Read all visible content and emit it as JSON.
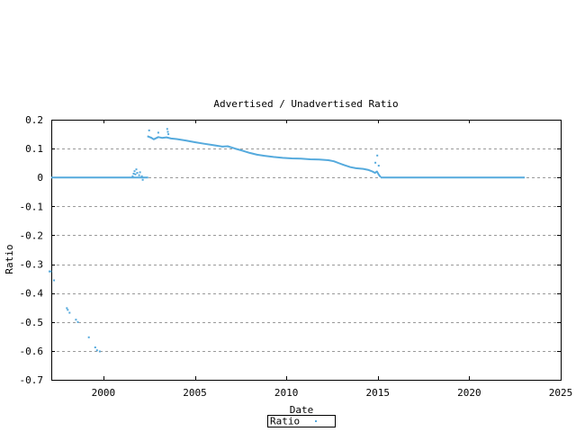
{
  "chart_data": {
    "type": "line",
    "title": "Advertised / Unadvertised Ratio",
    "xlabel": "Date",
    "ylabel": "Ratio",
    "xlim": [
      1997.15,
      2025
    ],
    "ylim": [
      -0.7,
      0.2
    ],
    "xticks": [
      "2000",
      "2005",
      "2010",
      "2015",
      "2020",
      "2025"
    ],
    "xtick_values": [
      2000,
      2005,
      2010,
      2015,
      2020,
      2025
    ],
    "yticks": [
      "0.2",
      "0.1",
      "0",
      "-0.1",
      "-0.2",
      "-0.3",
      "-0.4",
      "-0.5",
      "-0.6",
      "-0.7"
    ],
    "ytick_values": [
      0.2,
      0.1,
      0,
      -0.1,
      -0.2,
      -0.3,
      -0.4,
      -0.5,
      -0.6,
      -0.7
    ],
    "grid": "horizontal-dashed",
    "legend": {
      "label": "Ratio",
      "position": "bottom-outside-center"
    },
    "line_color": "#55aadd",
    "grid_color": "#9a9a9a",
    "series": [
      {
        "name": "zero-baseline-early",
        "mode": "line",
        "points": [
          [
            1997.15,
            0
          ],
          [
            2002.45,
            0
          ]
        ]
      },
      {
        "name": "main-ratio-curve",
        "mode": "line",
        "points": [
          [
            2002.4,
            0.143
          ],
          [
            2002.6,
            0.138
          ],
          [
            2002.75,
            0.132
          ],
          [
            2003.0,
            0.14
          ],
          [
            2003.2,
            0.137
          ],
          [
            2003.45,
            0.139
          ],
          [
            2003.7,
            0.135
          ],
          [
            2004.0,
            0.133
          ],
          [
            2004.5,
            0.128
          ],
          [
            2005.0,
            0.122
          ],
          [
            2005.5,
            0.117
          ],
          [
            2006.0,
            0.112
          ],
          [
            2006.5,
            0.107
          ],
          [
            2006.8,
            0.108
          ],
          [
            2007.2,
            0.1
          ],
          [
            2007.6,
            0.093
          ],
          [
            2008.0,
            0.085
          ],
          [
            2008.4,
            0.079
          ],
          [
            2008.8,
            0.075
          ],
          [
            2009.3,
            0.071
          ],
          [
            2009.8,
            0.068
          ],
          [
            2010.3,
            0.066
          ],
          [
            2010.8,
            0.065
          ],
          [
            2011.3,
            0.063
          ],
          [
            2011.8,
            0.062
          ],
          [
            2012.3,
            0.06
          ],
          [
            2012.6,
            0.056
          ],
          [
            2012.9,
            0.049
          ],
          [
            2013.2,
            0.042
          ],
          [
            2013.5,
            0.036
          ],
          [
            2013.8,
            0.032
          ],
          [
            2014.2,
            0.03
          ],
          [
            2014.5,
            0.026
          ],
          [
            2014.7,
            0.021
          ],
          [
            2014.85,
            0.016
          ],
          [
            2014.95,
            0.021
          ],
          [
            2015.05,
            0.01
          ],
          [
            2015.16,
            0.001
          ]
        ]
      },
      {
        "name": "zero-baseline-late",
        "mode": "line",
        "points": [
          [
            2015.16,
            0
          ],
          [
            2023.03,
            0
          ]
        ]
      },
      {
        "name": "scatter-negative-early",
        "mode": "dots",
        "points": [
          [
            1997.05,
            -0.325
          ],
          [
            1997.12,
            -0.325
          ],
          [
            1997.3,
            -0.356
          ],
          [
            1998.0,
            -0.452
          ],
          [
            1998.05,
            -0.458
          ],
          [
            1998.15,
            -0.468
          ],
          [
            1998.5,
            -0.492
          ],
          [
            1998.6,
            -0.5
          ],
          [
            1999.2,
            -0.553
          ],
          [
            1999.55,
            -0.588
          ],
          [
            1999.65,
            -0.598
          ],
          [
            1999.8,
            -0.602
          ]
        ]
      },
      {
        "name": "scatter-bump-2002",
        "mode": "dots",
        "points": [
          [
            2001.6,
            0.004
          ],
          [
            2001.65,
            0.013
          ],
          [
            2001.7,
            0.022
          ],
          [
            2001.75,
            0.011
          ],
          [
            2001.8,
            0.028
          ],
          [
            2001.85,
            0.016
          ],
          [
            2001.95,
            0.008
          ],
          [
            2002.0,
            0.018
          ],
          [
            2002.1,
            0.004
          ],
          [
            2002.15,
            -0.008
          ]
        ]
      },
      {
        "name": "scatter-above-curve-start",
        "mode": "dots",
        "points": [
          [
            2002.5,
            0.163
          ],
          [
            2003.0,
            0.155
          ],
          [
            2003.49,
            0.168
          ],
          [
            2003.52,
            0.158
          ],
          [
            2003.55,
            0.15
          ]
        ]
      },
      {
        "name": "scatter-near-2015",
        "mode": "dots",
        "points": [
          [
            2014.97,
            0.076
          ],
          [
            2014.87,
            0.051
          ],
          [
            2015.05,
            0.041
          ]
        ]
      }
    ]
  }
}
